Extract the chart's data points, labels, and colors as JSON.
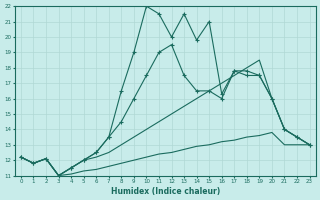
{
  "xlabel": "Humidex (Indice chaleur)",
  "xlim": [
    -0.5,
    23.5
  ],
  "ylim": [
    11,
    22
  ],
  "yticks": [
    11,
    12,
    13,
    14,
    15,
    16,
    17,
    18,
    19,
    20,
    21,
    22
  ],
  "xticks": [
    0,
    1,
    2,
    3,
    4,
    5,
    6,
    7,
    8,
    9,
    10,
    11,
    12,
    13,
    14,
    15,
    16,
    17,
    18,
    19,
    20,
    21,
    22,
    23
  ],
  "bg_color": "#c8ecea",
  "line_color": "#1a6b5e",
  "grid_color": "#b0d8d5",
  "lines": [
    {
      "x": [
        0,
        1,
        2,
        3,
        4,
        5,
        6,
        7,
        8,
        9,
        10,
        11,
        12,
        13,
        14,
        15,
        16,
        17,
        18,
        19,
        20,
        21,
        22,
        23
      ],
      "y": [
        12.2,
        11.8,
        12.1,
        11.0,
        11.1,
        11.3,
        11.4,
        11.6,
        11.8,
        12.0,
        12.2,
        12.4,
        12.5,
        12.7,
        12.9,
        13.0,
        13.2,
        13.3,
        13.5,
        13.6,
        13.8,
        13.0,
        13.0,
        13.0
      ],
      "marker": false,
      "lw": 0.8
    },
    {
      "x": [
        0,
        1,
        2,
        3,
        4,
        5,
        6,
        7,
        8,
        9,
        10,
        11,
        12,
        13,
        14,
        15,
        16,
        17,
        18,
        19,
        20,
        21,
        22,
        23
      ],
      "y": [
        12.2,
        11.8,
        12.1,
        11.0,
        11.5,
        12.0,
        12.2,
        12.5,
        13.0,
        13.5,
        14.0,
        14.5,
        15.0,
        15.5,
        16.0,
        16.5,
        17.0,
        17.5,
        18.0,
        18.5,
        16.0,
        14.0,
        13.5,
        13.0
      ],
      "marker": false,
      "lw": 0.8
    },
    {
      "x": [
        0,
        1,
        2,
        3,
        4,
        5,
        6,
        7,
        8,
        9,
        10,
        11,
        12,
        13,
        14,
        15,
        16,
        17,
        18,
        19,
        20,
        21,
        22,
        23
      ],
      "y": [
        12.2,
        11.8,
        12.1,
        11.0,
        11.5,
        12.0,
        12.5,
        13.5,
        14.5,
        16.0,
        17.5,
        19.0,
        19.5,
        17.5,
        16.5,
        16.5,
        16.0,
        17.8,
        17.5,
        17.5,
        16.0,
        14.0,
        13.5,
        13.0
      ],
      "marker": true,
      "lw": 0.8
    },
    {
      "x": [
        0,
        1,
        2,
        3,
        4,
        5,
        6,
        7,
        8,
        9,
        10,
        11,
        12,
        13,
        14,
        15,
        16,
        17,
        18,
        19,
        20,
        21,
        22,
        23
      ],
      "y": [
        12.2,
        11.8,
        12.1,
        11.0,
        11.5,
        12.0,
        12.5,
        13.5,
        16.5,
        19.0,
        22.0,
        21.5,
        20.0,
        21.5,
        19.8,
        21.0,
        16.3,
        17.8,
        17.8,
        17.5,
        16.0,
        14.0,
        13.5,
        13.0
      ],
      "marker": true,
      "lw": 0.8
    }
  ]
}
